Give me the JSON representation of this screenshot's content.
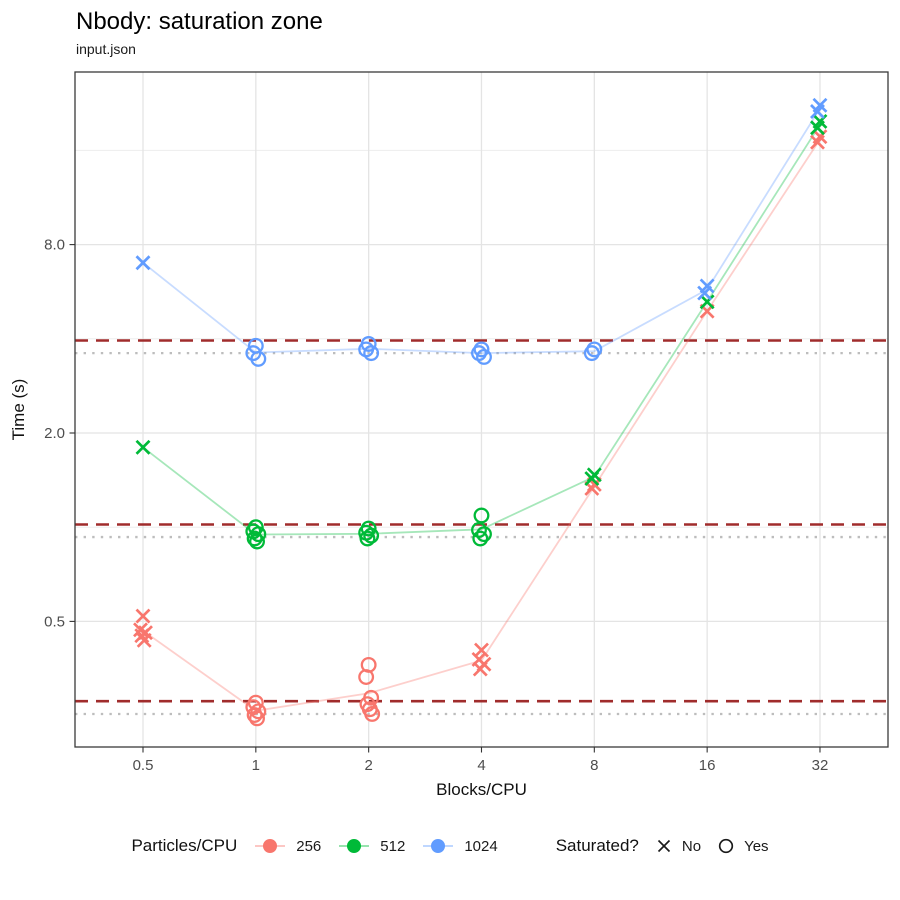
{
  "header": {
    "title": "Nbody: saturation zone",
    "subtitle": "input.json"
  },
  "legend": {
    "color": {
      "title": "Particles/CPU",
      "items": [
        {
          "label": "256",
          "color": "#F8766D"
        },
        {
          "label": "512",
          "color": "#00BA38"
        },
        {
          "label": "1024",
          "color": "#619CFF"
        }
      ]
    },
    "shape": {
      "title": "Saturated?",
      "items": [
        {
          "label": "No",
          "shape": "x"
        },
        {
          "label": "Yes",
          "shape": "circle"
        }
      ]
    }
  },
  "chart_data": {
    "type": "scatter",
    "title": "Nbody: saturation zone",
    "subtitle": "input.json",
    "xlabel": "Blocks/CPU",
    "ylabel": "Time (s)",
    "x_scale": "log2",
    "y_scale": "log2",
    "xlim": [
      0.35,
      45
    ],
    "ylim": [
      0.2,
      28
    ],
    "x_ticks": [
      0.5,
      1,
      2,
      4,
      8,
      16,
      32
    ],
    "x_tick_labels": [
      "0.5",
      "1",
      "2",
      "4",
      "8",
      "16",
      "32"
    ],
    "y_ticks": [
      0.5,
      2,
      8
    ],
    "y_tick_labels": [
      "0.5",
      "2.0",
      "8.0"
    ],
    "y_minor_ticks": [
      1,
      4,
      16
    ],
    "grid": true,
    "legend_position": "bottom",
    "series": [
      {
        "name": "256",
        "particles_per_cpu": 256,
        "color": "#F8766D",
        "points": [
          {
            "x": 0.5,
            "saturated": "No",
            "times": [
              0.52,
              0.47,
              0.46,
              0.45,
              0.435
            ]
          },
          {
            "x": 1,
            "saturated": "Yes",
            "times": [
              0.275,
              0.266,
              0.258,
              0.251,
              0.245
            ]
          },
          {
            "x": 2,
            "saturated": "Yes",
            "times": [
              0.363,
              0.332,
              0.285,
              0.272,
              0.262,
              0.253
            ]
          },
          {
            "x": 4,
            "saturated": "No",
            "times": [
              0.405,
              0.378,
              0.365,
              0.352
            ]
          },
          {
            "x": 8,
            "saturated": "No",
            "times": [
              1.37,
              1.33
            ]
          },
          {
            "x": 16,
            "saturated": "No",
            "times": [
              4.9
            ]
          },
          {
            "x": 32,
            "saturated": "No",
            "times": [
              17.7,
              17.0
            ]
          }
        ]
      },
      {
        "name": "512",
        "particles_per_cpu": 512,
        "color": "#00BA38",
        "points": [
          {
            "x": 0.5,
            "saturated": "No",
            "times": [
              1.8
            ]
          },
          {
            "x": 1,
            "saturated": "Yes",
            "times": [
              1.0,
              0.97,
              0.95,
              0.92,
              0.9
            ]
          },
          {
            "x": 2,
            "saturated": "Yes",
            "times": [
              0.99,
              0.96,
              0.94,
              0.92
            ]
          },
          {
            "x": 4,
            "saturated": "Yes",
            "times": [
              1.09,
              0.98,
              0.95,
              0.92
            ]
          },
          {
            "x": 8,
            "saturated": "No",
            "times": [
              1.47,
              1.43
            ]
          },
          {
            "x": 16,
            "saturated": "No",
            "times": [
              5.25
            ]
          },
          {
            "x": 32,
            "saturated": "No",
            "times": [
              19.8,
              18.9
            ]
          }
        ]
      },
      {
        "name": "1024",
        "particles_per_cpu": 1024,
        "color": "#619CFF",
        "points": [
          {
            "x": 0.5,
            "saturated": "No",
            "times": [
              7.0
            ]
          },
          {
            "x": 1,
            "saturated": "Yes",
            "times": [
              3.8,
              3.6,
              3.45
            ]
          },
          {
            "x": 2,
            "saturated": "Yes",
            "times": [
              3.85,
              3.7,
              3.6
            ]
          },
          {
            "x": 4,
            "saturated": "Yes",
            "times": [
              3.7,
              3.6,
              3.5
            ]
          },
          {
            "x": 8,
            "saturated": "Yes",
            "times": [
              3.7,
              3.6
            ]
          },
          {
            "x": 16,
            "saturated": "No",
            "times": [
              5.9,
              5.6
            ]
          },
          {
            "x": 32,
            "saturated": "No",
            "times": [
              22.3,
              21.3
            ]
          }
        ]
      }
    ],
    "reference_lines": [
      {
        "style": "dashed",
        "color": "#A02C2C",
        "values": [
          3.95,
          1.02,
          0.278
        ]
      },
      {
        "style": "dotted",
        "color": "#BDBDBD",
        "values": [
          3.6,
          0.93,
          0.253
        ]
      }
    ]
  }
}
